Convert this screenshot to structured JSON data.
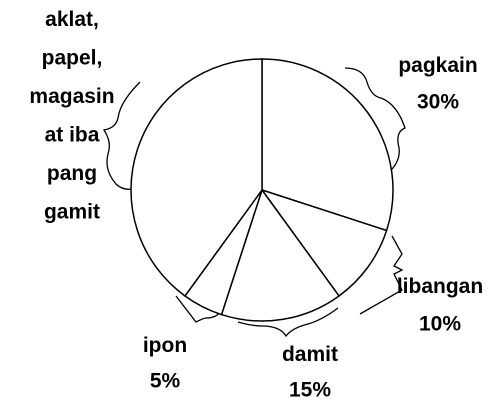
{
  "chart_data": {
    "type": "pie",
    "categories": [
      "pagkain",
      "libangan",
      "damit",
      "ipon",
      "aklat,\npapel,\nmagasin\nat iba\npang\ngamit"
    ],
    "values": [
      30,
      10,
      15,
      5,
      40
    ],
    "value_labels": [
      "30%",
      "10%",
      "15%",
      "5%",
      null
    ],
    "color": "#ffffff"
  }
}
